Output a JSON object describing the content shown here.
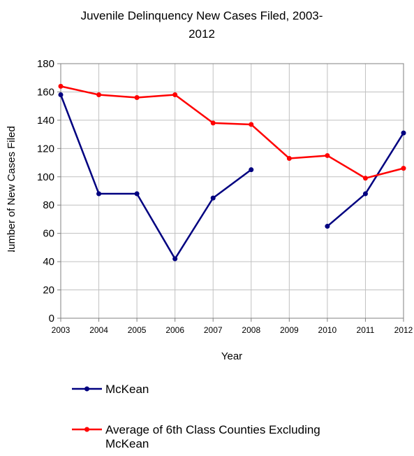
{
  "chart_data": {
    "type": "line",
    "title_lines": [
      "Juvenile Delinquency New Cases Filed, 2003-",
      "2012"
    ],
    "xlabel": "Year",
    "ylabel": "Number of New Cases Filed",
    "ylim": [
      0,
      180
    ],
    "yticks": [
      0,
      20,
      40,
      60,
      80,
      100,
      120,
      140,
      160,
      180
    ],
    "x": [
      "2003",
      "2004",
      "2005",
      "2006",
      "2007",
      "2008",
      "2009",
      "2010",
      "2011",
      "2012"
    ],
    "grid": true,
    "legend_position": "bottom",
    "series": [
      {
        "name": "McKean",
        "color": "#000080",
        "values": [
          158,
          88,
          88,
          42,
          85,
          105,
          null,
          65,
          88,
          131
        ]
      },
      {
        "name": "Average of 6th Class Counties Excluding McKean",
        "name_lines": [
          "Average of 6th Class Counties Excluding",
          "McKean"
        ],
        "color": "#ff0000",
        "values": [
          164,
          158,
          156,
          158,
          138,
          137,
          113,
          115,
          99,
          106
        ]
      }
    ]
  }
}
